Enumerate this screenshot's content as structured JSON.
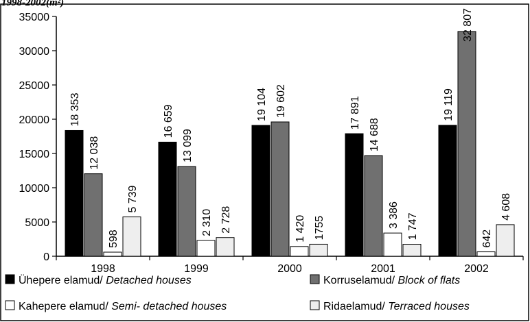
{
  "page_title_fragment": "1998-2002(m²)",
  "chart_data": {
    "type": "bar",
    "title": "",
    "xlabel": "",
    "ylabel": "",
    "ylim": [
      0,
      35000
    ],
    "yticks": [
      0,
      5000,
      10000,
      15000,
      20000,
      25000,
      30000,
      35000
    ],
    "grid": false,
    "legend_position": "bottom",
    "categories": [
      "1998",
      "1999",
      "2000",
      "2001",
      "2002"
    ],
    "series": [
      {
        "name_prefix": "Ühepere elamud/ ",
        "name_italic": "Detached houses",
        "color": "#000000",
        "values": [
          18353,
          16659,
          19104,
          17891,
          19119
        ],
        "labels": [
          "18 353",
          "16 659",
          "19 104",
          "17 891",
          "19 119"
        ]
      },
      {
        "name_prefix": "Korruselamud/ ",
        "name_italic": "Block of flats",
        "color": "#707070",
        "values": [
          12038,
          13099,
          19602,
          14688,
          32807
        ],
        "labels": [
          "12 038",
          "13 099",
          "19 602",
          "14 688",
          "32 807"
        ]
      },
      {
        "name_prefix": "Kahepere elamud/ ",
        "name_italic": "Semi- detached houses",
        "color": "#ffffff",
        "values": [
          598,
          2310,
          1420,
          3386,
          642
        ],
        "labels": [
          "598",
          "2 310",
          "1 420",
          "3 386",
          "642"
        ]
      },
      {
        "name_prefix": "Ridaelamud/ ",
        "name_italic": "Terraced houses",
        "color": "#eeeeee",
        "values": [
          5739,
          2728,
          1755,
          1747,
          4608
        ],
        "labels": [
          "5 739",
          "2 728",
          "1755",
          "1 747",
          "4 608"
        ]
      }
    ]
  }
}
